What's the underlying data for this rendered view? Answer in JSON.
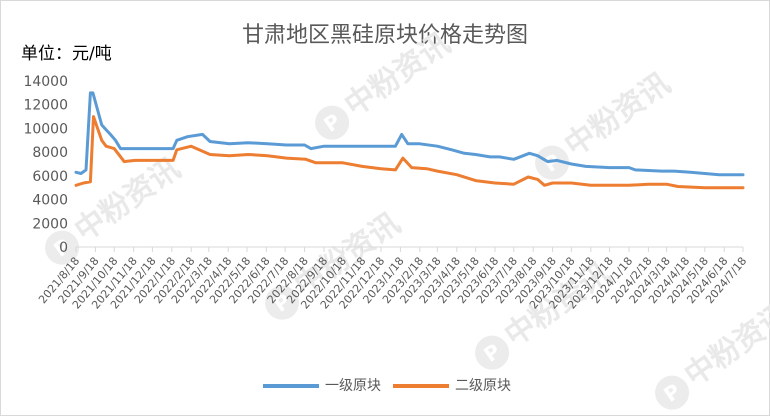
{
  "chart_data": {
    "type": "line",
    "title": "甘肃地区黑硅原块价格走势图",
    "unit_label": "单位：元/吨",
    "ylim": [
      0,
      14000
    ],
    "yticks": [
      "0",
      "2000",
      "4000",
      "6000",
      "8000",
      "10000",
      "12000",
      "14000"
    ],
    "grid": false,
    "legend_position": "bottom",
    "x_categories": [
      "2021/8/18",
      "2021/9/18",
      "2021/10/18",
      "2021/11/18",
      "2021/12/18",
      "2022/1/18",
      "2022/2/18",
      "2022/3/18",
      "2022/4/18",
      "2022/5/18",
      "2022/6/18",
      "2022/7/18",
      "2022/8/18",
      "2022/9/18",
      "2022/10/18",
      "2022/11/18",
      "2022/12/18",
      "2023/1/18",
      "2023/2/18",
      "2023/3/18",
      "2023/4/18",
      "2023/5/18",
      "2023/6/18",
      "2023/7/18",
      "2023/8/18",
      "2023/9/18",
      "2023/10/18",
      "2023/11/18",
      "2023/12/18",
      "2024/1/18",
      "2024/2/18",
      "2024/3/18",
      "2024/4/18",
      "2024/5/18",
      "2024/6/18",
      "2024/7/18"
    ],
    "series": [
      {
        "name": "一级原块",
        "color": "#5b9bd5",
        "x": [
          "2021/8/18",
          "2021/8/26",
          "2021/9/3",
          "2021/9/10",
          "2021/9/14",
          "2021/9/28",
          "2021/10/3",
          "2021/10/12",
          "2021/10/20",
          "2021/10/28",
          "2021/11/3",
          "2021/11/20",
          "2021/12/10",
          "2022/1/20",
          "2022/1/26",
          "2022/2/12",
          "2022/3/8",
          "2022/3/20",
          "2022/4/20",
          "2022/5/20",
          "2022/6/20",
          "2022/7/20",
          "2022/8/18",
          "2022/8/28",
          "2022/9/18",
          "2022/10/18",
          "2022/11/18",
          "2022/12/18",
          "2023/1/10",
          "2023/1/20",
          "2023/1/30",
          "2023/2/18",
          "2023/3/18",
          "2023/4/10",
          "2023/4/30",
          "2023/5/18",
          "2023/6/10",
          "2023/6/25",
          "2023/7/18",
          "2023/8/12",
          "2023/8/25",
          "2023/9/10",
          "2023/9/25",
          "2023/10/18",
          "2023/11/10",
          "2023/12/18",
          "2024/1/18",
          "2024/1/28",
          "2024/3/10",
          "2024/3/30",
          "2024/4/25",
          "2024/5/18",
          "2024/6/10",
          "2024/7/18"
        ],
        "y": [
          6300,
          6200,
          6500,
          13000,
          13000,
          10300,
          10000,
          9500,
          9000,
          8300,
          8300,
          8300,
          8300,
          8300,
          9000,
          9300,
          9500,
          8900,
          8700,
          8800,
          8700,
          8600,
          8600,
          8300,
          8500,
          8500,
          8500,
          8500,
          8500,
          9500,
          8700,
          8700,
          8500,
          8200,
          7900,
          7800,
          7600,
          7600,
          7400,
          7900,
          7700,
          7200,
          7300,
          7000,
          6800,
          6700,
          6700,
          6500,
          6400,
          6400,
          6300,
          6200,
          6100,
          6100
        ]
      },
      {
        "name": "二级原块",
        "color": "#ed7d31",
        "x": [
          "2021/8/18",
          "2021/8/30",
          "2021/9/10",
          "2021/9/15",
          "2021/9/28",
          "2021/10/5",
          "2021/10/18",
          "2021/11/3",
          "2021/11/20",
          "2021/12/18",
          "2022/1/20",
          "2022/1/26",
          "2022/2/18",
          "2022/3/20",
          "2022/4/20",
          "2022/5/20",
          "2022/6/20",
          "2022/7/20",
          "2022/8/20",
          "2022/9/5",
          "2022/10/18",
          "2022/11/18",
          "2022/12/18",
          "2023/1/10",
          "2023/1/22",
          "2023/2/5",
          "2023/3/1",
          "2023/3/18",
          "2023/4/18",
          "2023/5/18",
          "2023/6/18",
          "2023/7/18",
          "2023/8/10",
          "2023/8/25",
          "2023/9/5",
          "2023/9/18",
          "2023/10/18",
          "2023/11/18",
          "2023/12/18",
          "2024/1/18",
          "2024/2/18",
          "2024/3/18",
          "2024/4/5",
          "2024/5/18",
          "2024/6/18",
          "2024/7/18"
        ],
        "y": [
          5200,
          5400,
          5500,
          11000,
          9000,
          8500,
          8300,
          7200,
          7300,
          7300,
          7300,
          8200,
          8500,
          7800,
          7700,
          7800,
          7700,
          7500,
          7400,
          7100,
          7100,
          6800,
          6600,
          6500,
          7500,
          6700,
          6600,
          6400,
          6100,
          5600,
          5400,
          5300,
          5900,
          5700,
          5200,
          5400,
          5400,
          5200,
          5200,
          5200,
          5300,
          5300,
          5100,
          5000,
          5000,
          5000
        ]
      }
    ]
  },
  "watermark": {
    "text": "中粉资讯",
    "logo_glyph": "P"
  }
}
